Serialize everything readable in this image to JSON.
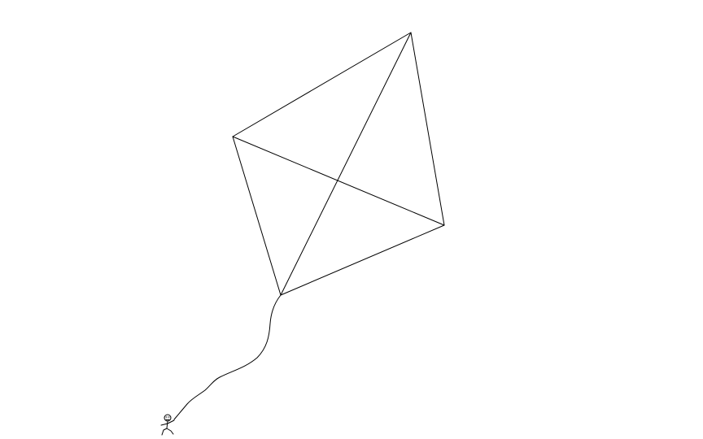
{
  "drawing": {
    "background_color": "#ffffff",
    "ink_color": "#000000",
    "subjects": [
      "kite-icon",
      "kite-string",
      "stick-figure-icon"
    ]
  }
}
